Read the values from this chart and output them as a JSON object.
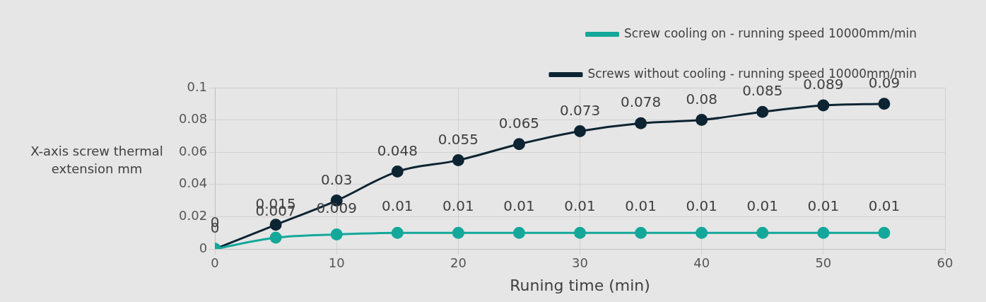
{
  "chart_data": {
    "type": "line",
    "xlabel": "Runing time (min)",
    "ylabel": "X-axis screw thermal extension mm",
    "x": [
      0,
      5,
      10,
      15,
      20,
      25,
      30,
      35,
      40,
      45,
      50,
      55
    ],
    "series": [
      {
        "name": "Screw cooling on - running speed 10000mm/min",
        "color": "#14a89b",
        "values": [
          0,
          0.007,
          0.009,
          0.01,
          0.01,
          0.01,
          0.01,
          0.01,
          0.01,
          0.01,
          0.01,
          0.01
        ]
      },
      {
        "name": "Screws without cooling - running speed 10000mm/min",
        "color": "#0d2433",
        "values": [
          0,
          0.015,
          0.03,
          0.048,
          0.055,
          0.065,
          0.073,
          0.078,
          0.08,
          0.085,
          0.089,
          0.09
        ]
      }
    ],
    "xlim": [
      0,
      60
    ],
    "xticks": [
      0,
      10,
      20,
      30,
      40,
      50,
      60
    ],
    "ylim": [
      0,
      0.1
    ],
    "yticks": [
      0,
      0.02,
      0.04,
      0.06,
      0.08,
      0.1
    ],
    "grid": true,
    "legend": "top right",
    "marker": "circle",
    "line_style": "solid",
    "data_labels": true
  }
}
